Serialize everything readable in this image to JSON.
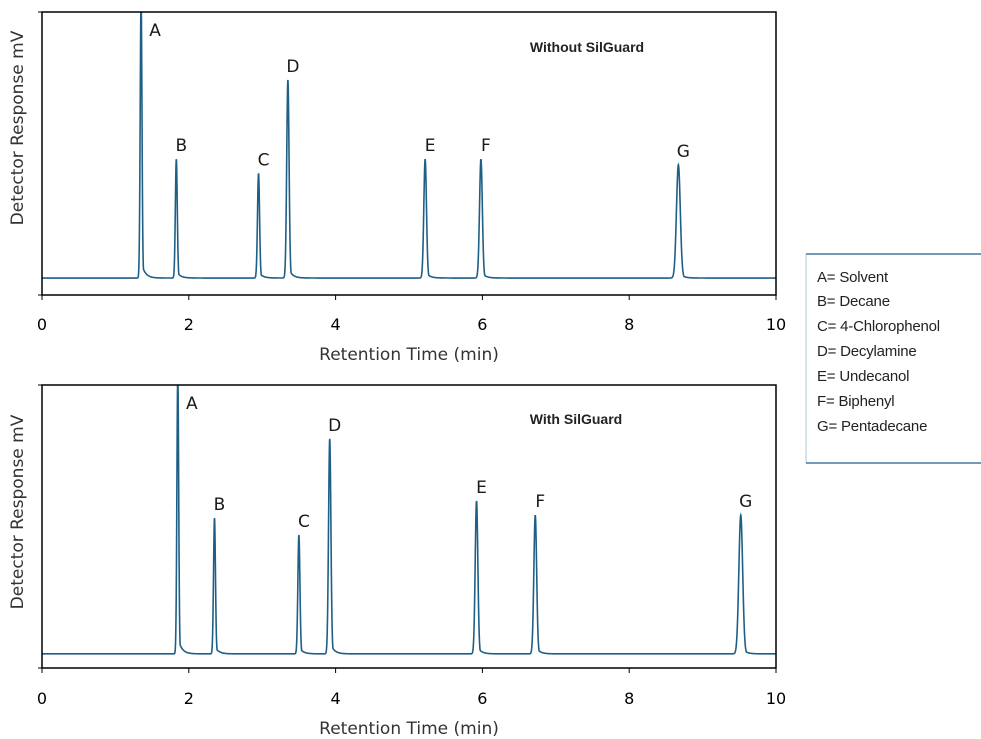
{
  "chart_data": [
    {
      "type": "line",
      "title": "Without SilGuard",
      "xlabel": "Retention Time (min)",
      "ylabel": "Detector Response mV",
      "xlim": [
        0,
        10
      ],
      "x_ticks": [
        "0",
        "2",
        "4",
        "6",
        "8",
        "10"
      ],
      "baseline": 0.06,
      "ylim": [
        0,
        1.0
      ],
      "color": "#1f5f86",
      "peaks": [
        {
          "label": "A",
          "x": 1.35,
          "height": 1.05
        },
        {
          "label": "B",
          "x": 1.83,
          "height": 0.48
        },
        {
          "label": "C",
          "x": 2.95,
          "height": 0.43
        },
        {
          "label": "D",
          "x": 3.35,
          "height": 0.76
        },
        {
          "label": "E",
          "x": 5.22,
          "height": 0.48
        },
        {
          "label": "F",
          "x": 5.98,
          "height": 0.48
        },
        {
          "label": "G",
          "x": 8.67,
          "height": 0.46
        }
      ]
    },
    {
      "type": "line",
      "title": "With SilGuard",
      "xlabel": "Retention Time (min)",
      "ylabel": "Detector Response mV",
      "xlim": [
        0,
        10
      ],
      "x_ticks": [
        "0",
        "2",
        "4",
        "6",
        "8",
        "10"
      ],
      "baseline": 0.05,
      "ylim": [
        0,
        1.0
      ],
      "color": "#1f5f86",
      "peaks": [
        {
          "label": "A",
          "x": 1.85,
          "height": 1.05
        },
        {
          "label": "B",
          "x": 2.35,
          "height": 0.53
        },
        {
          "label": "C",
          "x": 3.5,
          "height": 0.47
        },
        {
          "label": "D",
          "x": 3.92,
          "height": 0.81
        },
        {
          "label": "E",
          "x": 5.92,
          "height": 0.59
        },
        {
          "label": "F",
          "x": 6.72,
          "height": 0.54
        },
        {
          "label": "G",
          "x": 9.52,
          "height": 0.54
        }
      ]
    }
  ],
  "legend": {
    "entries": [
      "A= Solvent",
      "B= Decane",
      "C= 4-Chlorophenol",
      "D= Decylamine",
      "E= Undecanol",
      "F= Biphenyl",
      "G= Pentadecane"
    ],
    "rule_color": "#1f5f86"
  }
}
